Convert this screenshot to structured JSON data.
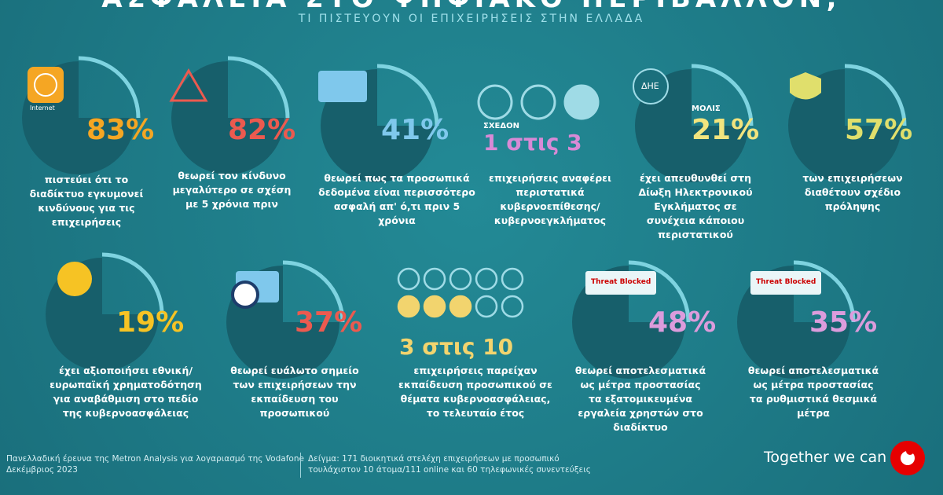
{
  "header": {
    "title": "ΑΣΦΑΛΕΙΑ ΣΤΟ ΨΗΦΙΑΚΟ ΠΕΡΙΒΑΛΛΟΝ;",
    "subtitle": "ΤΙ ΠΙΣΤΕΥΟΥΝ ΟΙ ΕΠΙΧΕΙΡΗΣΕΙΣ ΣΤΗΝ ΕΛΛΑΔΑ"
  },
  "items": [
    {
      "stat": "83%",
      "color": "#f5a623",
      "icon_label": "Internet",
      "text": "πιστεύει ότι το διαδίκτυο εγκυμονεί κινδύνους για τις επιχειρήσεις"
    },
    {
      "stat": "82%",
      "color": "#ec5a4f",
      "text": "θεωρεί τον κίνδυνο μεγαλύτερο σε σχέση με 5 χρόνια πριν"
    },
    {
      "stat": "41%",
      "color": "#7fc8ec",
      "text": "θεωρεί πως τα προσωπικά δεδομένα είναι περισσότερο ασφαλή απ' ό,τι πριν 5 χρόνια"
    },
    {
      "stat": "1 στις 3",
      "prefix": "ΣΧΕΔΟΝ",
      "color": "#d88ad6",
      "text": "επιχειρήσεις αναφέρει περιστατικά κυβερνοεπίθεσης/ κυβερνοεγκλήματος"
    },
    {
      "stat": "21%",
      "prefix": "ΜΟΛΙΣ",
      "icon_label": "ΔΗΕ",
      "color": "#f2e47e",
      "text": "έχει απευθυνθεί στη Δίωξη Ηλεκτρονικού Εγκλήματος σε συνέχεια κάποιου περιστατικού"
    },
    {
      "stat": "57%",
      "color": "#e0df6c",
      "text": "των επιχειρήσεων διαθέτουν σχέδιο πρόληψης"
    },
    {
      "stat": "19%",
      "color": "#f6c324",
      "text": "έχει αξιοποιήσει εθνική/ ευρωπαϊκή χρηματοδότηση για αναβάθμιση στο πεδίο της κυβερνοασφάλειας"
    },
    {
      "stat": "37%",
      "color": "#ec5a4f",
      "text": "θεωρεί ευάλωτο σημείο των επιχειρήσεων την εκπαίδευση του προσωπικού"
    },
    {
      "stat": "3 στις 10",
      "color": "#f2d46e",
      "text": "επιχειρήσεις παρείχαν εκπαίδευση προσωπικού σε θέματα κυβερνοασφάλειας, το τελευταίο έτος"
    },
    {
      "stat": "48%",
      "color": "#dc9cdc",
      "icon_label": "Threat Blocked",
      "text": "θεωρεί αποτελεσματικά ως μέτρα προστασίας τα εξατομικευμένα εργαλεία χρηστών στο διαδίκτυο"
    },
    {
      "stat": "35%",
      "color": "#dc9cdc",
      "icon_label": "Threat Blocked",
      "text": "θεωρεί αποτελεσματικά ως μέτρα προστασίας τα ρυθμιστικά θεσμικά μέτρα"
    }
  ],
  "footer": {
    "source": [
      "Πανελλαδική έρευνα της Metron Analysis για λογαριασμό της Vodafone",
      "Δεκέμβριος 2023"
    ],
    "sample": [
      "Δείγμα: 171 διοικητικά στελέχη επιχειρήσεων με προσωπικό",
      "τουλάχιστον 10 άτομα/111 online και 60 τηλεφωνικές συνεντεύξεις"
    ],
    "slogan": "Together we can"
  }
}
